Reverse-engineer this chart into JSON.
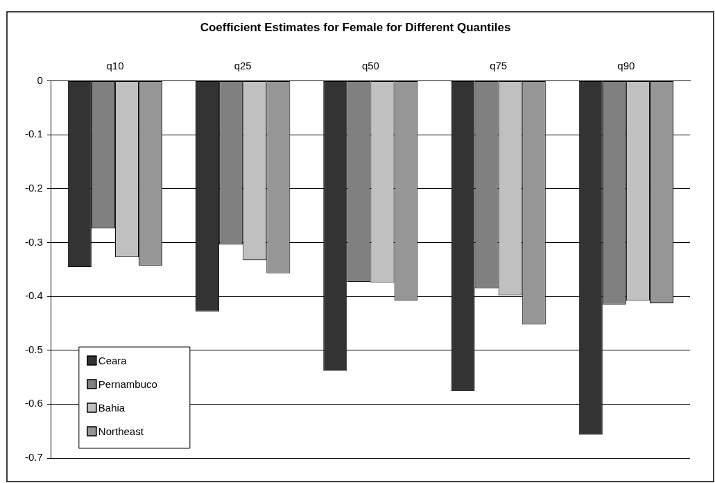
{
  "chart_data": {
    "type": "bar",
    "title": "Coefficient Estimates for Female for Different Quantiles",
    "categories": [
      "q10",
      "q25",
      "q50",
      "q75",
      "q90"
    ],
    "series": [
      {
        "name": "Ceara",
        "color": "#333333",
        "values": [
          -0.346,
          -0.428,
          -0.538,
          -0.575,
          -0.657
        ]
      },
      {
        "name": "Pernambuco",
        "color": "#808080",
        "values": [
          -0.274,
          -0.304,
          -0.373,
          -0.385,
          -0.415
        ]
      },
      {
        "name": "Bahia",
        "color": "#c0c0c0",
        "values": [
          -0.327,
          -0.333,
          -0.375,
          -0.398,
          -0.408
        ]
      },
      {
        "name": "Northeast",
        "color": "#969696",
        "values": [
          -0.343,
          -0.357,
          -0.408,
          -0.452,
          -0.413
        ]
      }
    ],
    "ylim": [
      -0.7,
      0
    ],
    "yticks": [
      0,
      -0.1,
      -0.2,
      -0.3,
      -0.4,
      -0.5,
      -0.6,
      -0.7
    ],
    "grid": "y",
    "legend": "bottom left"
  }
}
